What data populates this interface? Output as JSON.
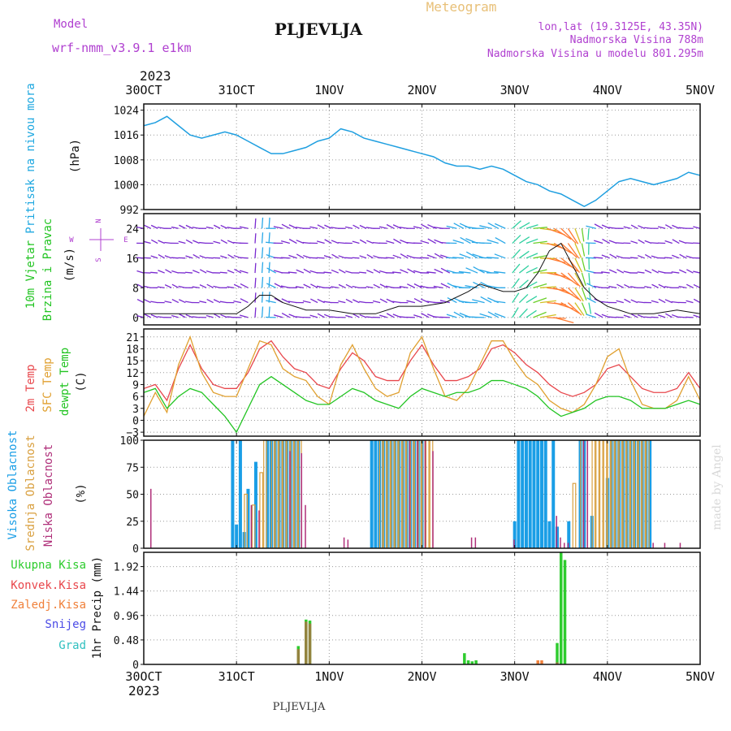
{
  "header": {
    "model_label": "Model",
    "model_name": "wrf-nmm_v3.9.1 e1km",
    "station": "PLJEVLJA",
    "meteogram": "Meteogram",
    "lonlat": "lon,lat (19.3125E, 43.35N)",
    "altitude": "Nadmorska Visina 788m",
    "model_altitude": "Nadmorska Visina u modelu 801.295m"
  },
  "footer": {
    "station": "PLJEVLJA",
    "credit": "made by Angel"
  },
  "time_axis": {
    "year": "2023",
    "days": [
      "30OCT",
      "31OCT",
      "1NOV",
      "2NOV",
      "3NOV",
      "4NOV",
      "5NOV"
    ],
    "span_hours": 144
  },
  "colors": {
    "pressure": "#1f9fe0",
    "wind_label": "#22c422",
    "wind_dir": "#b040d0",
    "temp2m": "#e8474c",
    "sfc": "#e0a030",
    "dewpt": "#22c422",
    "high": "#1a9ee6",
    "mid": "#d9a040",
    "low": "#b0307a",
    "rain_total": "#2ecc2e",
    "rain_conv": "#e8474c",
    "rain_frozen": "#f0803a",
    "snow": "#4b4be6",
    "hail": "#30c0c0"
  },
  "chart_data": [
    {
      "type": "line",
      "panel": "pressure",
      "ylabel": [
        "Pritisak na nivou mora",
        "(hPa)"
      ],
      "ylim": [
        992,
        1026
      ],
      "yticks": [
        "1024",
        "1016",
        "1008",
        "1000",
        "992"
      ],
      "grid": true,
      "series": [
        {
          "x": [
            0,
            3,
            6,
            9,
            12,
            15,
            18,
            21,
            24,
            27,
            30,
            33,
            36,
            39,
            42,
            45,
            48,
            51,
            54,
            57,
            60,
            63,
            66,
            69,
            72,
            75,
            78,
            81,
            84,
            87,
            90,
            93,
            96,
            99,
            102,
            105,
            108,
            111,
            114,
            117,
            120,
            123,
            126,
            129,
            132,
            135,
            138,
            141,
            144
          ],
          "values": [
            1019,
            1020,
            1022,
            1019,
            1016,
            1015,
            1016,
            1017,
            1016,
            1014,
            1012,
            1010,
            1010,
            1011,
            1012,
            1014,
            1015,
            1018,
            1017,
            1015,
            1014,
            1013,
            1012,
            1011,
            1010,
            1009,
            1007,
            1006,
            1006,
            1005,
            1006,
            1005,
            1003,
            1001,
            1000,
            998,
            997,
            995,
            993,
            995,
            998,
            1001,
            1002,
            1001,
            1000,
            1001,
            1002,
            1004,
            1003
          ]
        }
      ]
    },
    {
      "type": "line",
      "panel": "wind",
      "ylabel": [
        "10m Vjetar",
        "Brzina i Pravac",
        "(m/s)"
      ],
      "compass": [
        "N",
        "W",
        "E",
        "S"
      ],
      "ylim": [
        -2,
        28
      ],
      "yticks": [
        "24",
        "16",
        "8",
        "0"
      ],
      "grid": true,
      "series": [
        {
          "name": "speed",
          "x": [
            0,
            6,
            12,
            18,
            24,
            27,
            30,
            33,
            36,
            42,
            48,
            54,
            60,
            66,
            72,
            78,
            84,
            87,
            90,
            93,
            96,
            99,
            102,
            105,
            108,
            111,
            114,
            117,
            120,
            126,
            132,
            138,
            144
          ],
          "values": [
            1,
            1,
            1,
            1,
            1,
            3,
            6,
            6,
            4,
            2,
            2,
            1,
            1,
            3,
            3,
            4,
            7,
            9,
            8,
            7,
            7,
            8,
            12,
            18,
            20,
            14,
            8,
            5,
            3,
            1,
            1,
            2,
            1
          ]
        }
      ]
    },
    {
      "type": "line",
      "panel": "temperature",
      "ylabel": [
        "2m Temp",
        "SFC Temp",
        "dewpt Temp",
        "(C)"
      ],
      "ylim": [
        -4,
        23
      ],
      "yticks": [
        "21",
        "18",
        "15",
        "12",
        "9",
        "6",
        "3",
        "0",
        "-3"
      ],
      "grid": true,
      "series": [
        {
          "name": "2m Temp",
          "x": [
            0,
            3,
            6,
            9,
            12,
            15,
            18,
            21,
            24,
            27,
            30,
            33,
            36,
            39,
            42,
            45,
            48,
            51,
            54,
            57,
            60,
            63,
            66,
            69,
            72,
            75,
            78,
            81,
            84,
            87,
            90,
            93,
            96,
            99,
            102,
            105,
            108,
            111,
            114,
            117,
            120,
            123,
            126,
            129,
            132,
            135,
            138,
            141,
            144
          ],
          "values": [
            8,
            9,
            5,
            13,
            19,
            13,
            9,
            8,
            8,
            12,
            18,
            20,
            16,
            13,
            12,
            9,
            8,
            13,
            17,
            15,
            11,
            10,
            10,
            15,
            19,
            14,
            10,
            10,
            11,
            13,
            18,
            19,
            17,
            14,
            12,
            9,
            7,
            6,
            7,
            9,
            13,
            14,
            11,
            8,
            7,
            7,
            8,
            12,
            8
          ]
        },
        {
          "name": "SFC Temp",
          "x": [
            0,
            3,
            6,
            9,
            12,
            15,
            18,
            21,
            24,
            27,
            30,
            33,
            36,
            39,
            42,
            45,
            48,
            51,
            54,
            57,
            60,
            63,
            66,
            69,
            72,
            75,
            78,
            81,
            84,
            87,
            90,
            93,
            96,
            99,
            102,
            105,
            108,
            111,
            114,
            117,
            120,
            123,
            126,
            129,
            132,
            135,
            138,
            141,
            144
          ],
          "values": [
            1,
            7,
            2,
            14,
            21,
            12,
            7,
            6,
            6,
            13,
            20,
            19,
            13,
            11,
            10,
            6,
            4,
            14,
            19,
            13,
            8,
            6,
            7,
            17,
            21,
            13,
            6,
            5,
            8,
            14,
            20,
            20,
            15,
            11,
            9,
            5,
            3,
            2,
            4,
            9,
            16,
            18,
            10,
            4,
            3,
            3,
            5,
            11,
            5
          ]
        },
        {
          "name": "dewpt Temp",
          "x": [
            0,
            3,
            6,
            9,
            12,
            15,
            18,
            21,
            24,
            27,
            30,
            33,
            36,
            39,
            42,
            45,
            48,
            51,
            54,
            57,
            60,
            63,
            66,
            69,
            72,
            75,
            78,
            81,
            84,
            87,
            90,
            93,
            96,
            99,
            102,
            105,
            108,
            111,
            114,
            117,
            120,
            123,
            126,
            129,
            132,
            135,
            138,
            141,
            144
          ],
          "values": [
            7,
            8,
            3,
            6,
            8,
            7,
            4,
            1,
            -3,
            3,
            9,
            11,
            9,
            7,
            5,
            4,
            4,
            6,
            8,
            7,
            5,
            4,
            3,
            6,
            8,
            7,
            6,
            7,
            7,
            8,
            10,
            10,
            9,
            8,
            6,
            3,
            1,
            2,
            3,
            5,
            6,
            6,
            5,
            3,
            3,
            3,
            4,
            5,
            4
          ]
        }
      ]
    },
    {
      "type": "bar",
      "panel": "cloud",
      "ylabel": [
        "Visoka Oblacnost",
        "Srednja Oblacnost",
        "Niska Oblacnost",
        "(%)"
      ],
      "ylim": [
        0,
        100
      ],
      "yticks": [
        "100",
        "75",
        "50",
        "25",
        "0"
      ],
      "grid": true,
      "series": [
        {
          "name": "Visoka",
          "x": [
            23,
            24,
            25,
            26,
            27,
            29,
            32,
            33,
            34,
            35,
            36,
            37,
            38,
            39,
            40,
            59,
            60,
            61,
            62,
            63,
            64,
            65,
            66,
            67,
            68,
            69,
            70,
            71,
            72,
            96,
            97,
            98,
            99,
            100,
            101,
            102,
            103,
            104,
            105,
            106,
            107,
            110,
            113,
            114,
            116,
            120,
            121,
            122,
            123,
            124,
            125,
            126,
            127,
            128,
            129,
            130,
            131
          ],
          "values": [
            100,
            22,
            100,
            15,
            55,
            80,
            100,
            100,
            100,
            100,
            100,
            100,
            100,
            100,
            100,
            100,
            100,
            100,
            100,
            100,
            100,
            100,
            100,
            100,
            100,
            100,
            100,
            100,
            100,
            25,
            100,
            100,
            100,
            100,
            100,
            100,
            100,
            100,
            25,
            100,
            20,
            25,
            100,
            100,
            30,
            65,
            100,
            100,
            100,
            100,
            100,
            100,
            100,
            100,
            100,
            100,
            100
          ]
        },
        {
          "name": "Srednja",
          "x": [
            26,
            28,
            30,
            31,
            33,
            34,
            35,
            36,
            37,
            38,
            39,
            40,
            61,
            62,
            63,
            64,
            65,
            66,
            67,
            68,
            69,
            70,
            71,
            72,
            73,
            74,
            111,
            113,
            116,
            117,
            118,
            119,
            120,
            121,
            122,
            123,
            124,
            125,
            126,
            127,
            128,
            129,
            130
          ],
          "values": [
            50,
            40,
            70,
            100,
            100,
            100,
            100,
            100,
            100,
            100,
            100,
            100,
            100,
            100,
            100,
            100,
            100,
            100,
            100,
            100,
            100,
            100,
            100,
            100,
            100,
            100,
            60,
            100,
            100,
            100,
            100,
            100,
            100,
            100,
            100,
            100,
            100,
            100,
            100,
            100,
            100,
            100,
            100
          ]
        },
        {
          "name": "Niska",
          "x": [
            1,
            27,
            29,
            37,
            40,
            41,
            51,
            52,
            68,
            70,
            72,
            74,
            84,
            85,
            95,
            106,
            107,
            108,
            109,
            113,
            114,
            131,
            134,
            138
          ],
          "values": [
            55,
            40,
            35,
            90,
            88,
            40,
            10,
            8,
            100,
            100,
            100,
            90,
            10,
            10,
            8,
            30,
            10,
            5,
            5,
            100,
            100,
            5,
            5,
            5
          ]
        }
      ]
    },
    {
      "type": "bar",
      "panel": "precipitation",
      "ylabel": [
        "1hr Precip (mm)"
      ],
      "legend": [
        "Ukupna Kisa",
        "Konvek.Kisa",
        "Zaledj.Kisa",
        "Snijeg",
        "Grad"
      ],
      "ylim": [
        0,
        2.2
      ],
      "yticks": [
        "1.92",
        "1.44",
        "0.96",
        "0.48",
        "0"
      ],
      "grid": true,
      "series": [
        {
          "name": "Ukupna Kisa",
          "x": [
            40,
            42,
            43,
            83,
            84,
            85,
            86,
            107,
            108,
            109
          ],
          "values": [
            0.36,
            0.88,
            0.86,
            0.22,
            0.08,
            0.06,
            0.08,
            0.42,
            2.2,
            2.05
          ]
        },
        {
          "name": "Konvek.Kisa",
          "x": [
            40,
            42,
            43,
            107
          ],
          "values": [
            0.3,
            0.84,
            0.8,
            0.04
          ]
        },
        {
          "name": "Zaledj.Kisa",
          "x": [
            102,
            103
          ],
          "values": [
            0.08,
            0.08
          ]
        }
      ]
    }
  ]
}
